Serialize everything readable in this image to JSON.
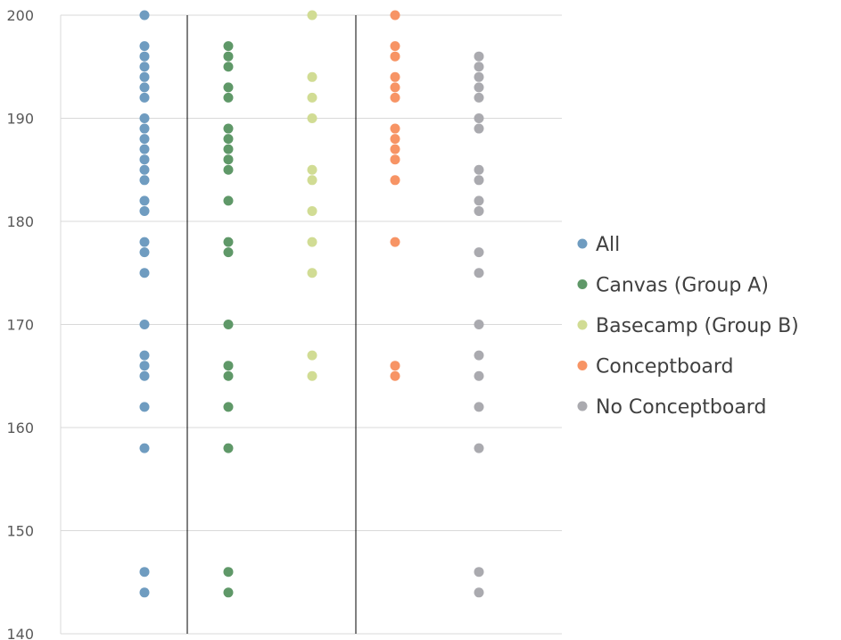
{
  "chart_data": {
    "type": "scatter",
    "ylim": [
      140,
      200
    ],
    "yticks": [
      140,
      150,
      160,
      170,
      180,
      190,
      200
    ],
    "grid": true,
    "legend": "right",
    "series": [
      {
        "name": "All",
        "color": "#6f9cc0",
        "values": [
          200,
          197,
          196,
          195,
          194,
          193,
          192,
          190,
          189,
          188,
          187,
          186,
          185,
          184,
          182,
          181,
          178,
          177,
          175,
          170,
          167,
          166,
          165,
          162,
          158,
          146,
          144
        ]
      },
      {
        "name": "Canvas (Group A)",
        "color": "#5f9868",
        "values": [
          197,
          196,
          195,
          193,
          192,
          189,
          188,
          187,
          186,
          185,
          182,
          178,
          177,
          170,
          166,
          165,
          162,
          158,
          146,
          144
        ]
      },
      {
        "name": "Basecamp (Group B)",
        "color": "#d1dc94",
        "values": [
          200,
          194,
          192,
          190,
          185,
          184,
          181,
          178,
          175,
          167,
          165
        ]
      },
      {
        "name": "Conceptboard",
        "color": "#f79465",
        "values": [
          200,
          197,
          196,
          194,
          193,
          192,
          189,
          188,
          187,
          186,
          184,
          178,
          166,
          165
        ]
      },
      {
        "name": "No Conceptboard",
        "color": "#aaaaaf",
        "values": [
          196,
          195,
          194,
          193,
          192,
          190,
          189,
          185,
          184,
          182,
          181,
          177,
          175,
          170,
          167,
          165,
          162,
          158,
          146,
          144
        ]
      }
    ]
  }
}
